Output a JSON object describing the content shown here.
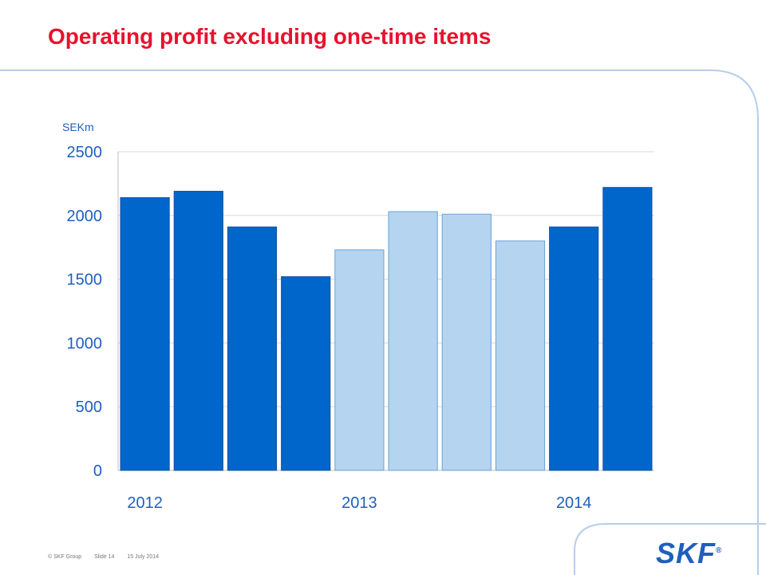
{
  "slide": {
    "title": "Operating profit excluding one-time items",
    "footer": {
      "copyright": "© SKF Group",
      "slide_number": "Slide 14",
      "date": "15 July 2014"
    },
    "logo_text": "SKF",
    "logo_mark": "®"
  },
  "colors": {
    "title": "#e8112d",
    "bar_dark": "#0066cc",
    "bar_light": "#b4d4f0",
    "bar_light_border": "#6aa2d6",
    "axis_text": "#1f5fbd",
    "grid": "#d9d9d9"
  },
  "chart_data": {
    "type": "bar",
    "title": "",
    "xlabel": "",
    "ylabel": "SEKm",
    "ylim": [
      0,
      2500
    ],
    "yticks": [
      0,
      500,
      1000,
      1500,
      2000,
      2500
    ],
    "grid": true,
    "year_labels": [
      "2012",
      "2013",
      "2014"
    ],
    "values": [
      2140,
      2190,
      1910,
      1520,
      1730,
      2030,
      2010,
      1800,
      1910,
      2220
    ],
    "bar_shade": [
      "dark",
      "dark",
      "dark",
      "dark",
      "light",
      "light",
      "light",
      "light",
      "dark",
      "dark"
    ]
  }
}
